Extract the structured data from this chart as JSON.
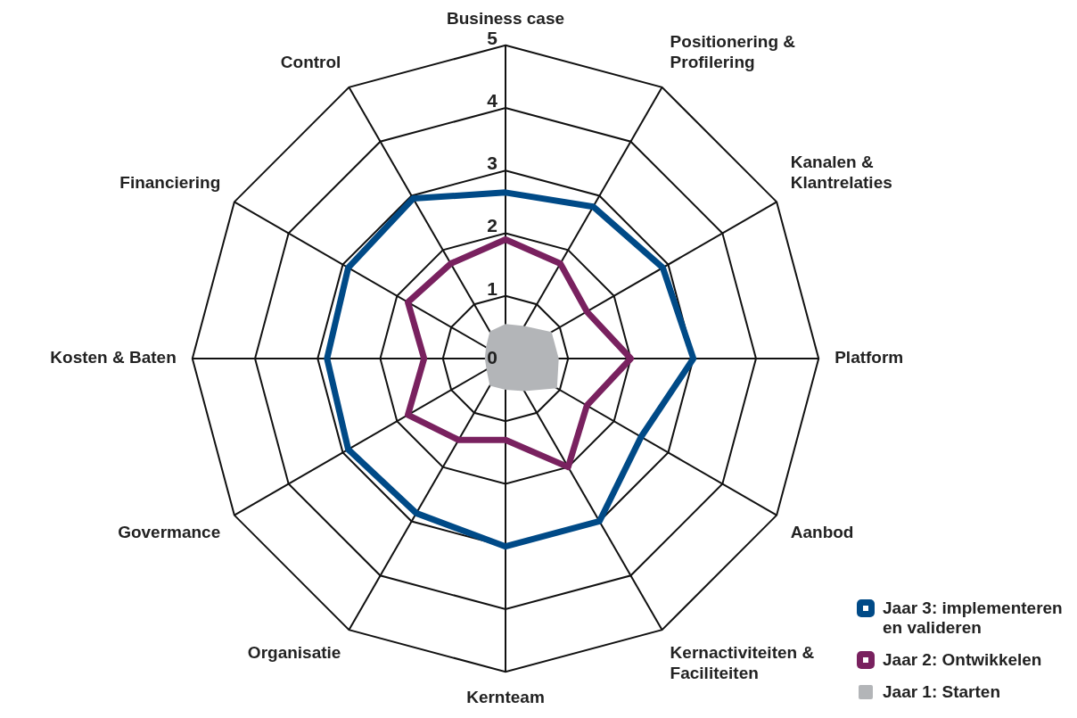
{
  "chart_data": {
    "type": "radar",
    "categories": [
      "Business case",
      "Positionering & Profilering",
      "Kanalen & Klantrelaties",
      "Platform",
      "Aanbod",
      "Kernactiviteiten & Faciliteiten",
      "Kernteam",
      "Organisatie",
      "Govermance",
      "Kosten & Baten",
      "Financiering",
      "Control"
    ],
    "ylim": [
      0,
      5
    ],
    "yticks": [
      0,
      1,
      2,
      3,
      4,
      5
    ],
    "grid": true,
    "legend": "bottom right",
    "marker": "none",
    "series": [
      {
        "name": "Jaar 3: implementeren en valideren",
        "color": "#004a87",
        "values": [
          2.65,
          2.8,
          2.9,
          3,
          2.5,
          3,
          3,
          2.85,
          2.9,
          2.85,
          2.9,
          2.95
        ]
      },
      {
        "name": "Jaar 2: Ontwikkelen",
        "color": "#79215f",
        "values": [
          1.9,
          1.75,
          1.5,
          2,
          1.5,
          2,
          1.3,
          1.5,
          1.8,
          1.3,
          1.8,
          1.75
        ]
      },
      {
        "name": "Jaar 1: Starten",
        "type": "area",
        "color": "#b3b5b8",
        "values": [
          0.55,
          0.6,
          0.85,
          0.85,
          0.95,
          0.6,
          0.5,
          0.5,
          0.35,
          0.33,
          0.36,
          0.5
        ]
      }
    ]
  }
}
